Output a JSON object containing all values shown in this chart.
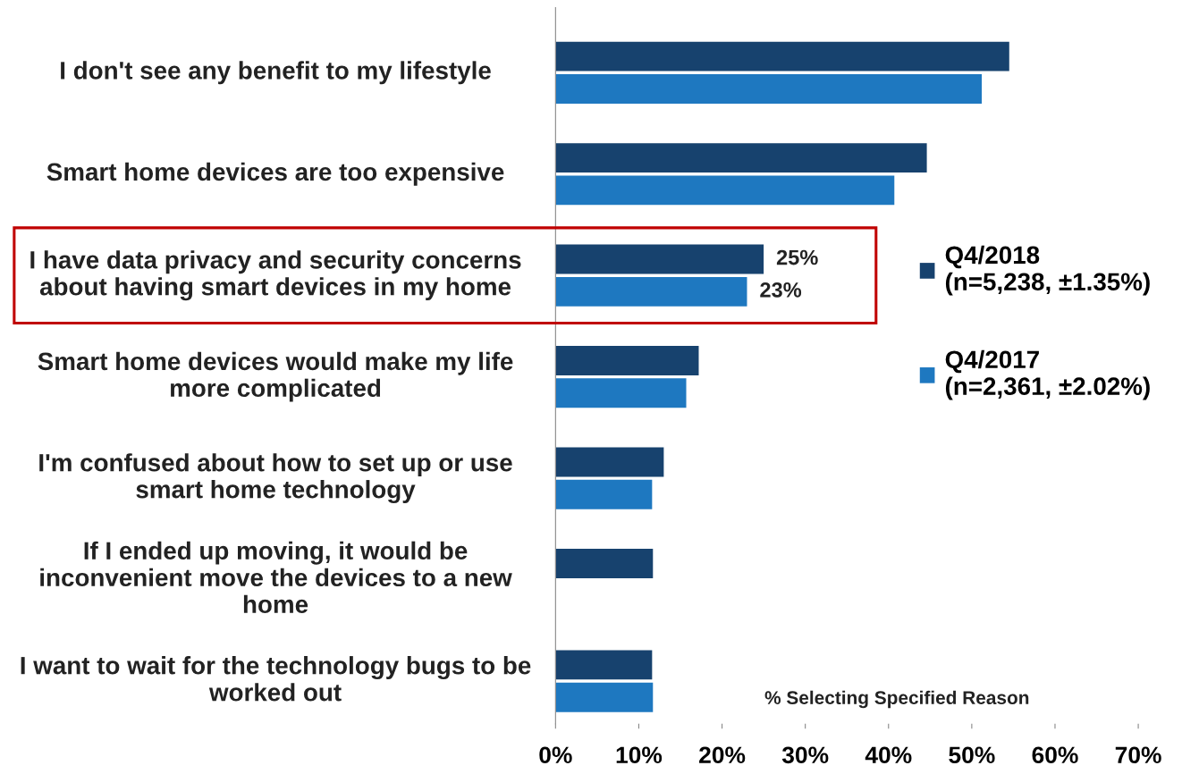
{
  "chart_data": {
    "type": "bar",
    "orientation": "horizontal",
    "categories": [
      "I don't see any benefit to my lifestyle",
      "Smart home devices are too expensive",
      "I have data privacy and security concerns about having smart devices in my home",
      "Smart home devices would make my life more complicated",
      "I'm confused about how to set up or use smart home technology",
      "If I ended up moving, it would be inconvenient move the devices to a new home",
      "I want to wait for the technology bugs to be worked out"
    ],
    "series": [
      {
        "name": "Q4/2018\n(n=5,238, ±1.35%)",
        "color": "#17426e",
        "values": [
          54.5,
          44.6,
          25,
          17.2,
          13.0,
          11.7,
          11.6
        ],
        "value_labels": [
          null,
          null,
          "25%",
          null,
          null,
          null,
          null
        ]
      },
      {
        "name": "Q4/2017\n(n=2,361, ±2.02%)",
        "color": "#1e78c0",
        "values": [
          51.2,
          40.7,
          23,
          15.7,
          11.6,
          null,
          11.7
        ],
        "value_labels": [
          null,
          null,
          "23%",
          null,
          null,
          null,
          null
        ]
      }
    ],
    "xlim": [
      0,
      70
    ],
    "xticks": [
      {
        "value": 0,
        "label": "0%"
      },
      {
        "value": 10,
        "label": "10%"
      },
      {
        "value": 20,
        "label": "20%"
      },
      {
        "value": 30,
        "label": "30%"
      },
      {
        "value": 40,
        "label": "40%"
      },
      {
        "value": 50,
        "label": "50%"
      },
      {
        "value": 60,
        "label": "60%"
      },
      {
        "value": 70,
        "label": "70%"
      }
    ],
    "annotations": [
      "% Selecting Specified Reason"
    ],
    "legend": "right",
    "grid": false
  }
}
